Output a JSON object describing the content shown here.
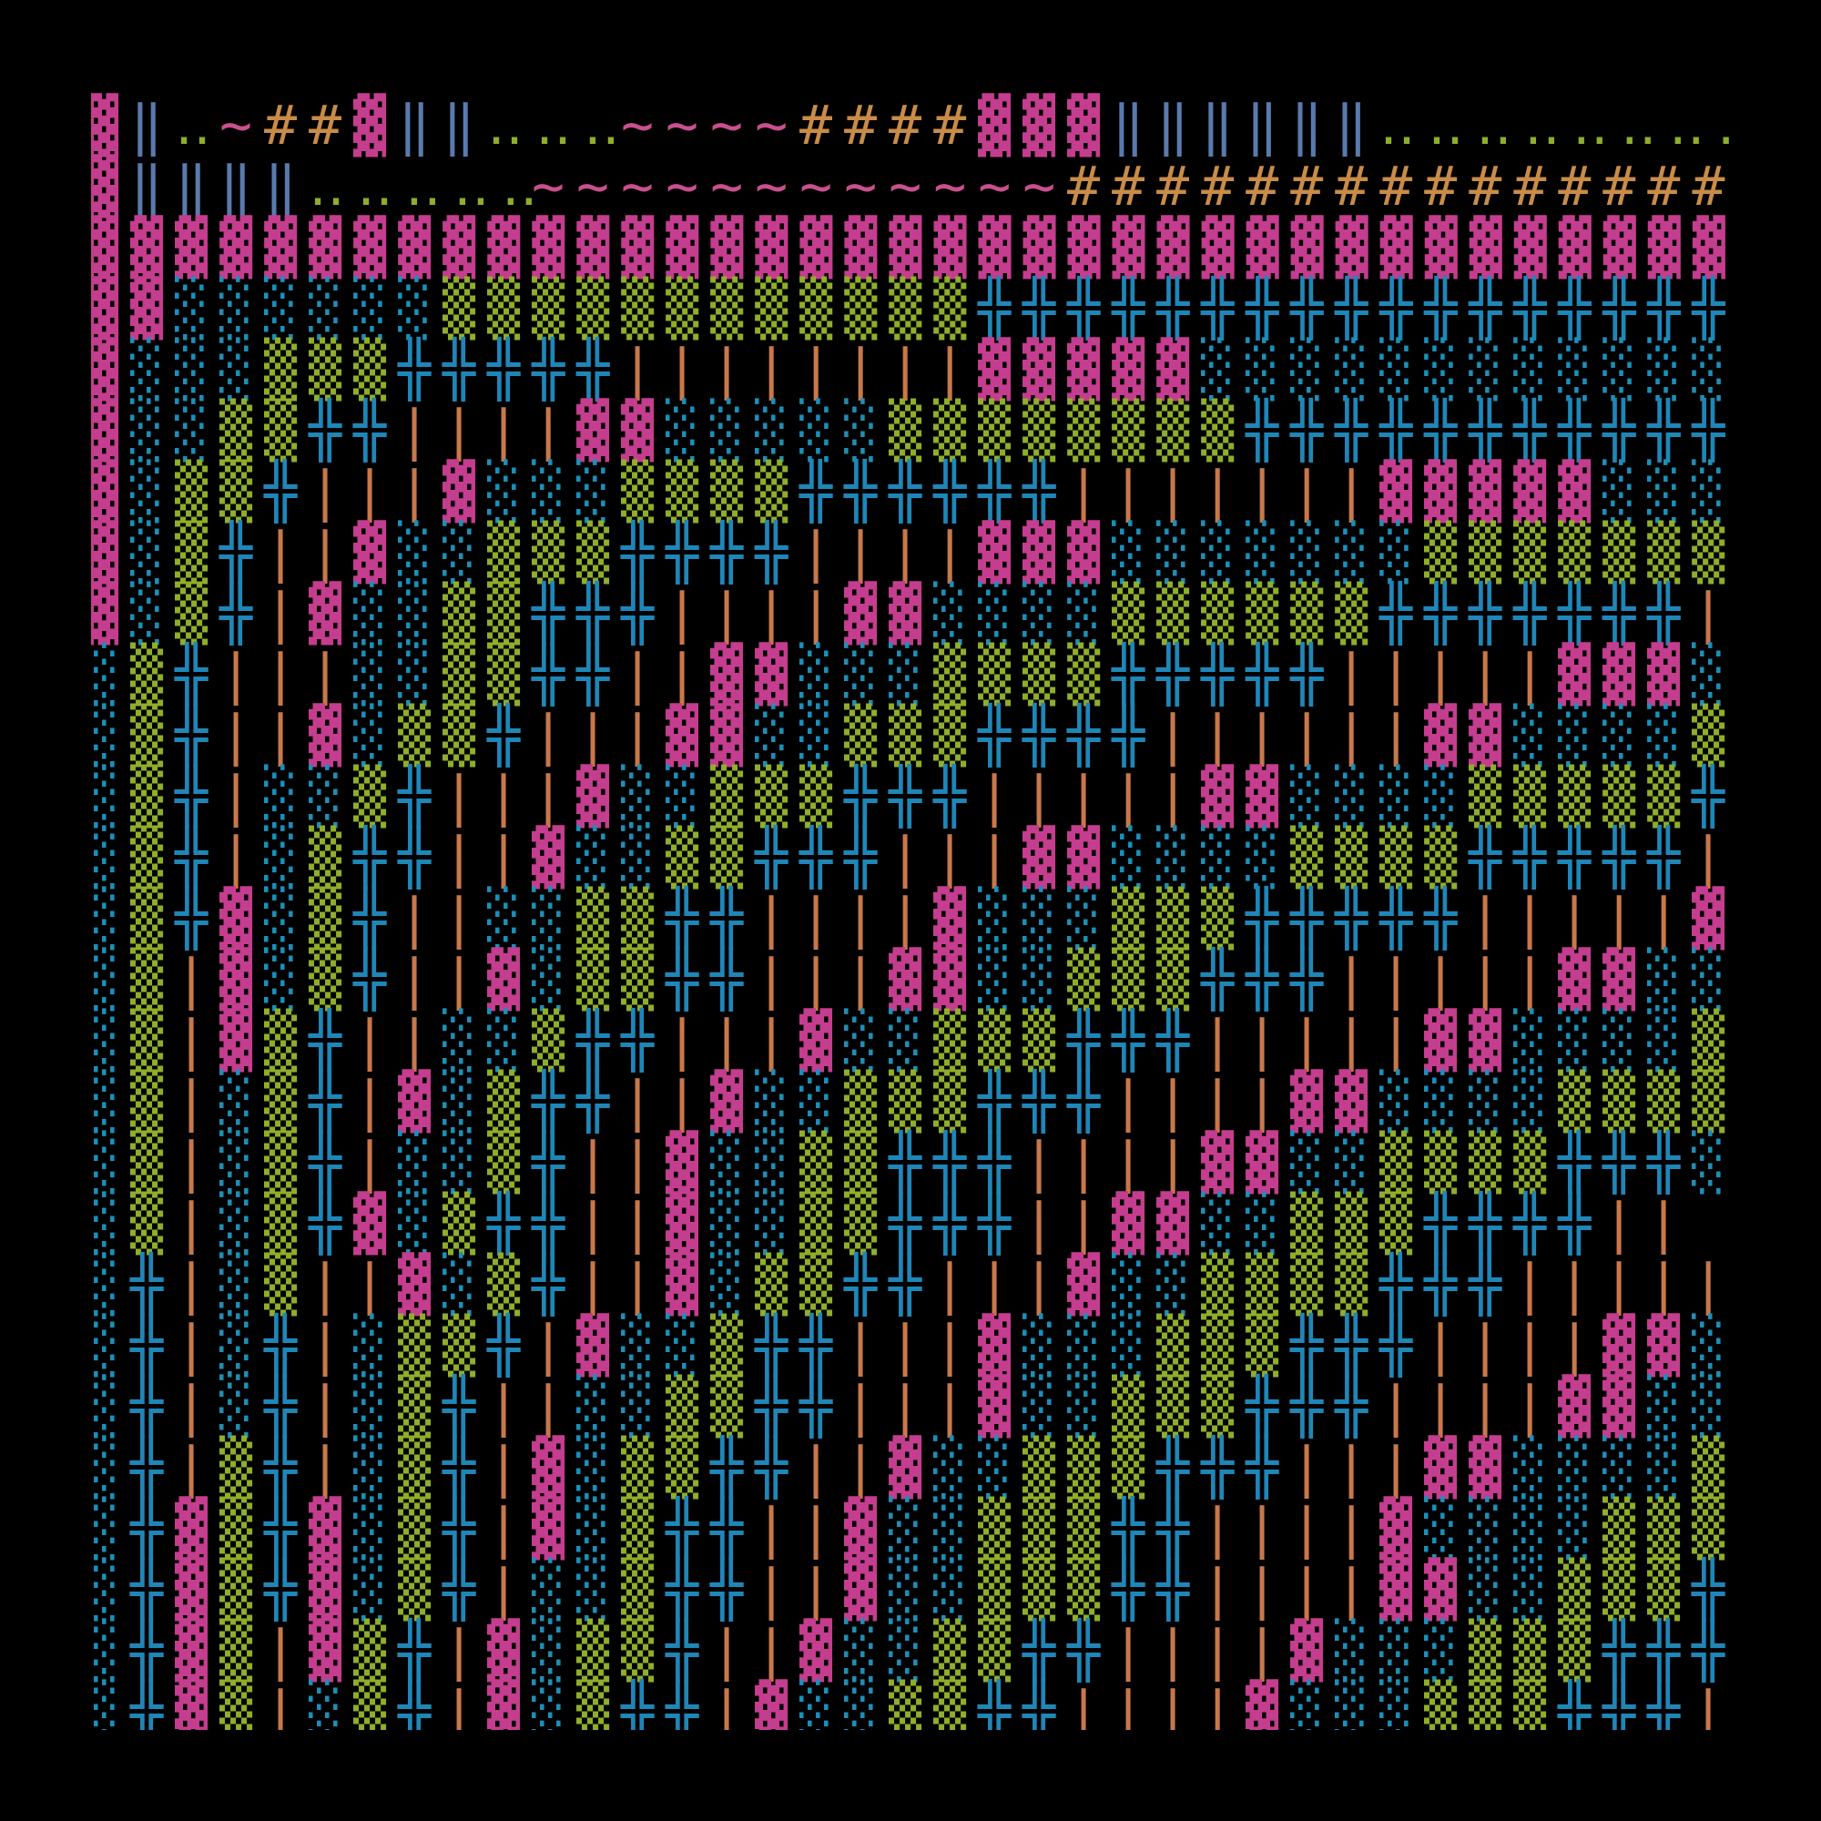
{
  "rows": [
    [
      "▓",
      "‖",
      "‥",
      "~",
      "##",
      "▓",
      "‖‖",
      "‥‥‥",
      "~~~~",
      "####",
      "▓▓▓",
      "‖‖‖‖‖‖",
      "‥‥‥‥‥‥‥‥"
    ],
    [
      "▓",
      "‖‖‖‖",
      "‥‥‥‥‥",
      "~~~~~~~~~~~~",
      "###############"
    ],
    [
      "▓▓▓▓▓▓▓▓▓▓▓▓▓▓▓▓▓▓▓▓▓▓▓▓▓▓▓▓▓▓▓▓▓▓▓▓▓"
    ],
    [
      "▓▓",
      "░░░░░░",
      "▒▒▒▒▒▒▒▒▒▒▒▒",
      "╬╬╬╬╬╬╬╬╬╬╬╬╬╬╬╬╬"
    ],
    [
      "▓",
      "░░░",
      "▒▒▒",
      "╬╬╬╬╬",
      "||||||||",
      "▓▓▓▓▓",
      "░░░░░░░░░░░░"
    ],
    [
      "▓",
      "░░",
      "▒▒",
      "╬╬",
      "||||",
      "▓▓",
      "░░░░░",
      "▒▒▒▒▒▒▒▒",
      "╬╬╬╬╬╬╬╬╬╬╬"
    ],
    [
      "▓",
      "░",
      "▒▒",
      "╬",
      "|||",
      "▓",
      "░░░",
      "▒▒▒▒",
      "╬╬╬╬╬╬",
      "|||||||",
      "▓▓▓▓▓",
      "░░░"
    ],
    [
      "▓",
      "░",
      "▒",
      "╬",
      "||",
      "▓",
      "░░",
      "▒▒▒",
      "╬╬╬╬",
      "||||",
      "▓▓▓",
      "░░░░░░░",
      "▒▒▒▒▒▒▒"
    ],
    [
      "▓",
      "░",
      "▒",
      "╬",
      "|",
      "▓",
      "░░",
      "▒▒",
      "╬╬╬",
      "||||",
      "▓▓",
      "░░░░",
      "▒▒▒▒▒▒",
      "╬╬╬╬╬╬╬",
      "|"
    ],
    [
      "░",
      "▒",
      "╬",
      "|||",
      "░░",
      "▒▒",
      "╬╬",
      "||",
      "▓▓",
      "░░░",
      "▒▒▒▒",
      "╬╬╬╬╬",
      "|||||",
      "▓▓▓",
      "░"
    ],
    [
      "░",
      "▒",
      "╬",
      "||",
      "▓",
      "░",
      "▒▒",
      "╬",
      "|||",
      "▓▓",
      "░░",
      "▒▒▒",
      "╬╬╬╬",
      "||||||",
      "▓▓",
      "░░░░",
      "▒"
    ],
    [
      "░",
      "▒",
      "╬",
      "|",
      "░░",
      "▒",
      "╬",
      "|||",
      "▓",
      "░░",
      "▒▒▒",
      "╬╬╬",
      "|||||",
      "▓▓",
      "░░░░",
      "▒▒▒▒▒",
      "╬"
    ],
    [
      "░",
      "▒",
      "╬",
      "|",
      "░",
      "▒",
      "╬╬",
      "||",
      "▓",
      "░░",
      "▒▒",
      "╬╬╬",
      "|||",
      "▓▓",
      "░░░░",
      "▒▒▒▒",
      "╬╬╬╬╬",
      "|"
    ],
    [
      "░",
      "▒",
      "╬",
      "▓",
      "░",
      "▒",
      "╬",
      "||",
      "░░",
      "▒▒",
      "╬╬",
      "||||",
      "▓",
      "░░░",
      "▒▒▒",
      "╬╬╬╬╬",
      "|||||",
      "▓"
    ],
    [
      "░",
      "▒",
      "|",
      "▓",
      "░",
      "▒",
      "╬",
      "||",
      "▓",
      "░",
      "▒▒",
      "╬╬",
      "|||",
      "▓▓",
      "░░",
      "▒▒▒",
      "╬╬╬",
      "|||||",
      "▓▓",
      "░░"
    ],
    [
      "░",
      "▒",
      "|",
      "▓",
      "▒",
      "╬",
      "||",
      "░░",
      "▒",
      "╬╬",
      "|||",
      "▓",
      "░░",
      "▒▒▒",
      "╬╬╬",
      "|||||",
      "▓▓",
      "░░░░",
      "▒"
    ],
    [
      "░",
      "▒",
      "|",
      "░",
      "▒",
      "╬",
      "|",
      "▓",
      "░",
      "▒",
      "╬╬",
      "||",
      "▓",
      "░░",
      "▒▒▒",
      "╬╬╬",
      "||||",
      "▓▓",
      "░░░░",
      "▒▒▒▒"
    ],
    [
      "░",
      "▒",
      "|",
      "░",
      "▒",
      "╬",
      "|",
      "░░",
      "▒",
      "╬",
      "||",
      "▓",
      "░░",
      "▒▒",
      "╬╬╬",
      "||||",
      "▓▓",
      "░░",
      "▒▒▒▒",
      "╬╬╬",
      "░"
    ],
    [
      "░",
      "▒",
      "|",
      "░",
      "▒",
      "╬",
      "▓",
      "░",
      "▒",
      "╬╬",
      "||",
      "▓",
      "░░",
      "▒▒",
      "╬╬╬",
      "||",
      "▓▓",
      "░░",
      "▒▒▒",
      "╬╬╬╬",
      "||"
    ],
    [
      "░",
      "╬",
      "|",
      "░",
      "▒",
      "||",
      "▓",
      "░",
      "▒",
      "╬",
      "||",
      "▓",
      "░",
      "▒▒",
      "╬╬",
      "|||",
      "▓",
      "░░",
      "▒▒▒▒",
      "╬╬╬",
      "|||||"
    ],
    [
      "░",
      "╬",
      "|",
      "░",
      "╬",
      "|",
      "░",
      "▒▒",
      "╬",
      "|",
      "▓",
      "░░",
      "▒",
      "╬╬",
      "|||",
      "▓",
      "░░░",
      "▒▒▒",
      "╬╬╬",
      "||||",
      "▓▓",
      "░"
    ],
    [
      "░",
      "╬",
      "|",
      "░",
      "╬",
      "|",
      "░",
      "▒",
      "╬",
      "||",
      "░░",
      "▒▒",
      "╬╬",
      "|||",
      "▓",
      "░░",
      "▒▒▒",
      "╬╬╬",
      "||||",
      "▓▓",
      "░░"
    ],
    [
      "░",
      "╬",
      "|",
      "▒",
      "╬",
      "|",
      "░",
      "▒",
      "╬",
      "|",
      "▓",
      "░",
      "▒▒",
      "╬╬",
      "||",
      "▓",
      "░░",
      "▒▒▒",
      "╬╬╬",
      "|||",
      "▓▓",
      "░░░░",
      "▒"
    ],
    [
      "░",
      "╬",
      "▓",
      "▒",
      "╬",
      "▓",
      "░",
      "▒",
      "╬",
      "|",
      "▓",
      "░",
      "▒",
      "╬╬",
      "||",
      "▓",
      "░░",
      "▒▒▒",
      "╬╬",
      "||||",
      "▓",
      "░░░░",
      "▒▒▒"
    ],
    [
      "░",
      "╬",
      "▓",
      "▒",
      "╬",
      "▓",
      "░",
      "▒",
      "╬",
      "|",
      "░░",
      "▒",
      "╬╬",
      "||",
      "▓",
      "░░",
      "▒▒▒",
      "╬╬",
      "||||",
      "▓▓",
      "░░",
      "▒▒▒",
      "╬"
    ],
    [
      "░",
      "╬",
      "▓",
      "▒",
      "|",
      "▓",
      "▒",
      "╬",
      "|",
      "▓",
      "░",
      "▒▒",
      "╬",
      "||",
      "▓",
      "░░",
      "▒▒",
      "╬╬",
      "||||",
      "▓",
      "░░░",
      "▒▒▒",
      "╬╬╬"
    ],
    [
      "░",
      "╬",
      "▓",
      "▒",
      "|",
      "░",
      "▒",
      "╬",
      "|",
      "▓",
      "░",
      "▒",
      "╬╬",
      "|",
      "▓",
      "░░",
      "▒▒",
      "╬╬",
      "||||",
      "▓",
      "░░░",
      "▒▒▒",
      "╬╬╬",
      "|"
    ]
  ]
}
